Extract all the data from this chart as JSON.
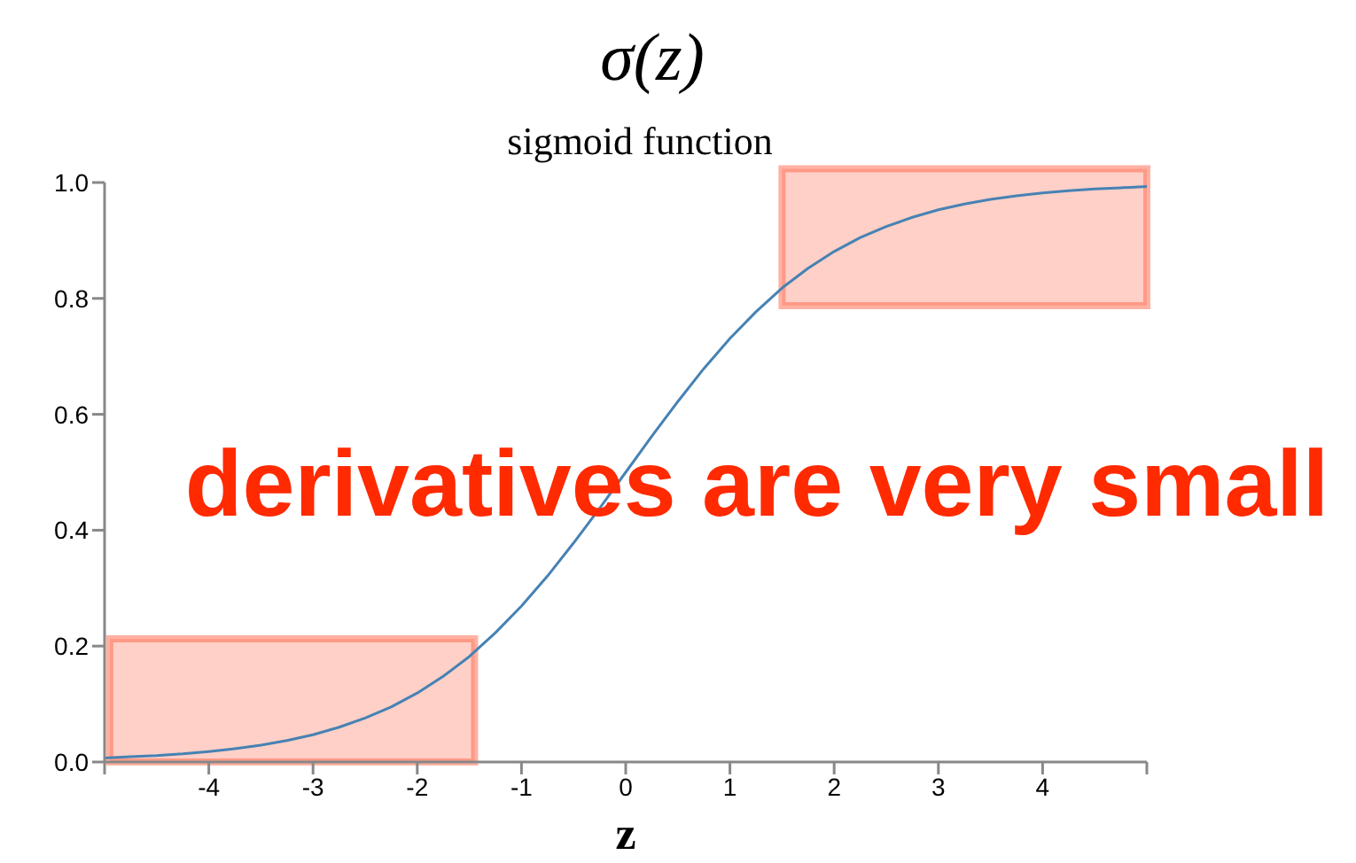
{
  "chart_data": {
    "type": "line",
    "title": "σ(z)",
    "subtitle": "sigmoid function",
    "xlabel": "z",
    "annotations": [
      "derivatives are very small"
    ],
    "x": [
      -5,
      -4.75,
      -4.5,
      -4.25,
      -4,
      -3.75,
      -3.5,
      -3.25,
      -3,
      -2.75,
      -2.5,
      -2.25,
      -2,
      -1.75,
      -1.5,
      -1.25,
      -1,
      -0.75,
      -0.5,
      -0.25,
      0,
      0.25,
      0.5,
      0.75,
      1,
      1.25,
      1.5,
      1.75,
      2,
      2.25,
      2.5,
      2.75,
      3,
      3.25,
      3.5,
      3.75,
      4,
      4.25,
      4.5,
      4.75,
      5
    ],
    "series": [
      {
        "color": "#4682b4",
        "values": [
          0.007,
          0.009,
          0.011,
          0.014,
          0.018,
          0.023,
          0.029,
          0.037,
          0.047,
          0.06,
          0.076,
          0.095,
          0.119,
          0.148,
          0.182,
          0.223,
          0.269,
          0.321,
          0.378,
          0.438,
          0.5,
          0.562,
          0.622,
          0.679,
          0.731,
          0.777,
          0.818,
          0.852,
          0.881,
          0.905,
          0.924,
          0.94,
          0.953,
          0.963,
          0.971,
          0.977,
          0.982,
          0.986,
          0.989,
          0.991,
          0.993
        ]
      }
    ],
    "xlim": [
      -5,
      5
    ],
    "xticks": [
      {
        "value": -5,
        "label": null
      },
      -4,
      -3,
      -2,
      -1,
      0,
      1,
      2,
      3,
      4,
      {
        "value": 5,
        "label": null
      }
    ],
    "ylim": [
      0,
      1
    ],
    "yticks": [
      {
        "value": 0,
        "label": "0.0"
      },
      {
        "value": 0.2,
        "label": "0.2"
      },
      {
        "value": 0.4,
        "label": "0.4"
      },
      {
        "value": 0.6,
        "label": "0.6"
      },
      {
        "value": 0.8,
        "label": "0.8"
      },
      {
        "value": 1,
        "label": "1.0"
      }
    ],
    "bands": [
      {
        "axis": "x",
        "from": -4.95,
        "to": -1.45,
        "color": "#ff6347"
      },
      {
        "axis": "x",
        "from": 1.5,
        "to": 5,
        "color": "#ff6347"
      }
    ]
  }
}
